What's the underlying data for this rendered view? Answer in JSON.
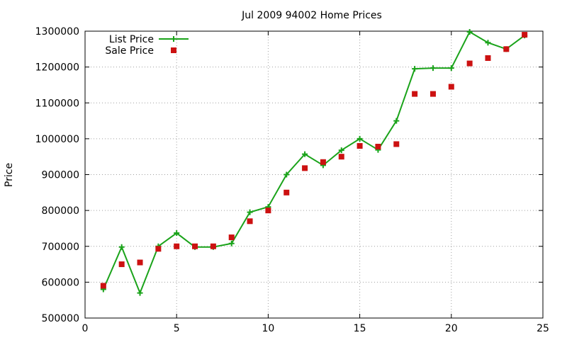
{
  "chart_data": {
    "type": "scatter",
    "title": "Jul 2009 94002 Home Prices",
    "xlabel": "",
    "ylabel": "Price",
    "xlim": [
      0,
      25
    ],
    "ylim": [
      500000,
      1300000
    ],
    "x_ticks": [
      "0",
      "5",
      "10",
      "15",
      "20",
      "25"
    ],
    "y_ticks": [
      "500000",
      "600000",
      "700000",
      "800000",
      "900000",
      "1000000",
      "1100000",
      "1200000",
      "1300000"
    ],
    "grid": true,
    "legend_position": "top-left",
    "series": [
      {
        "name": "List Price",
        "style": "linespoints",
        "color": "#1aa31a",
        "marker": "plus",
        "x": [
          1,
          2,
          3,
          4,
          5,
          6,
          7,
          8,
          9,
          10,
          11,
          12,
          13,
          14,
          15,
          16,
          17,
          18,
          19,
          20,
          21,
          22,
          23,
          24
        ],
        "y": [
          580000,
          698000,
          570000,
          700000,
          737000,
          698000,
          698000,
          708000,
          795000,
          810000,
          900000,
          957000,
          926000,
          968000,
          1000000,
          969000,
          1050000,
          1195000,
          1197000,
          1197000,
          1298000,
          1268000,
          1250000,
          1288000
        ]
      },
      {
        "name": "Sale Price",
        "style": "points",
        "color": "#cc1111",
        "marker": "square",
        "x": [
          1,
          2,
          3,
          4,
          5,
          6,
          7,
          8,
          9,
          10,
          11,
          12,
          13,
          14,
          15,
          16,
          17,
          18,
          19,
          20,
          21,
          22,
          23,
          24
        ],
        "y": [
          590000,
          650000,
          655000,
          693000,
          700000,
          700000,
          700000,
          725000,
          770000,
          800000,
          850000,
          918000,
          935000,
          950000,
          980000,
          978000,
          985000,
          1125000,
          1125000,
          1145000,
          1210000,
          1225000,
          1250000,
          1290000
        ]
      }
    ]
  }
}
